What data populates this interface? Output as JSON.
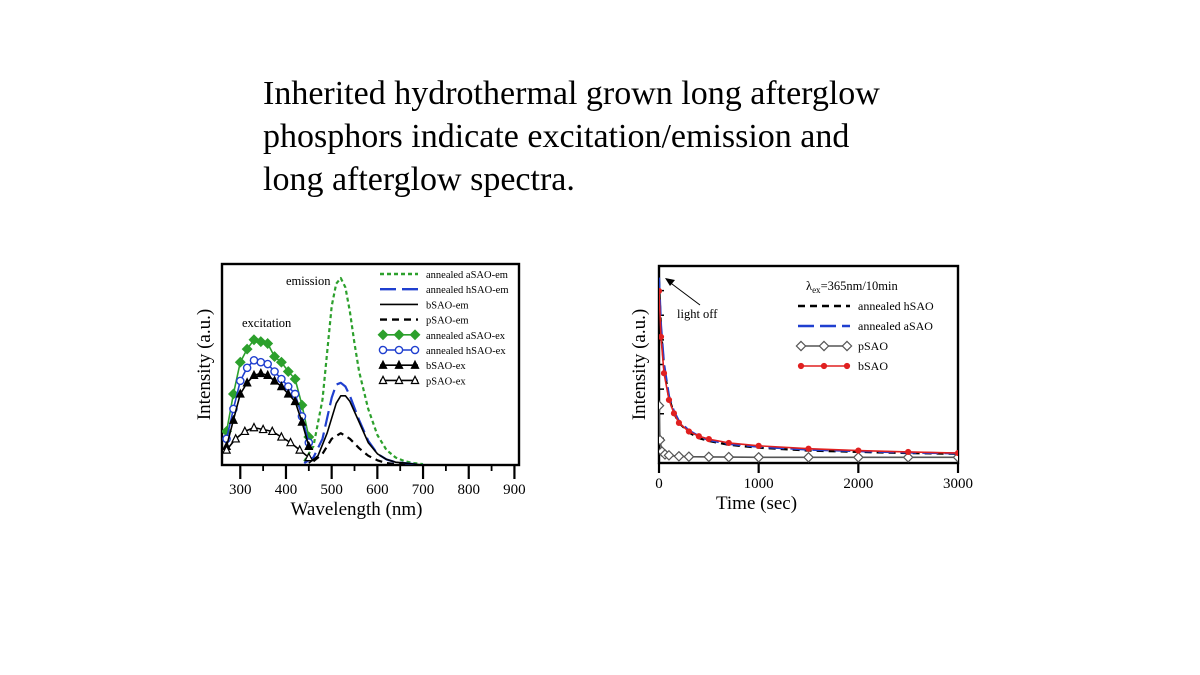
{
  "slide": {
    "title_lines": [
      "Inherited hydrothermal grown long afterglow",
      "phosphors indicate excitation/emission and",
      "long afterglow spectra."
    ]
  },
  "chart_data": [
    {
      "id": "spectra",
      "type": "line",
      "title": "",
      "xlabel": "Wavelength (nm)",
      "ylabel": "Intensity (a.u.)",
      "xlim": [
        260,
        910
      ],
      "ylim": [
        0,
        1.0
      ],
      "xticks": [
        300,
        400,
        500,
        600,
        700,
        800,
        900
      ],
      "annotations": [
        {
          "text": "emission",
          "x": 450,
          "y": 0.93
        },
        {
          "text": "excitation",
          "x": 265,
          "y": 0.72
        }
      ],
      "series": [
        {
          "name": "annealed aSAO-em",
          "color": "#2ca02c",
          "style": "dotted",
          "marker": "none",
          "x": [
            440,
            460,
            480,
            490,
            500,
            510,
            520,
            530,
            540,
            550,
            560,
            580,
            600,
            620,
            640,
            660,
            680,
            700
          ],
          "y": [
            0.02,
            0.1,
            0.35,
            0.6,
            0.85,
            0.97,
            1.0,
            0.95,
            0.82,
            0.65,
            0.5,
            0.3,
            0.16,
            0.08,
            0.04,
            0.02,
            0.01,
            0.005
          ]
        },
        {
          "name": "annealed hSAO-em",
          "color": "#1f3fcf",
          "style": "longdash",
          "marker": "none",
          "x": [
            440,
            460,
            480,
            500,
            510,
            520,
            530,
            540,
            560,
            580,
            600,
            620,
            640,
            660,
            680,
            700
          ],
          "y": [
            0.01,
            0.04,
            0.14,
            0.36,
            0.43,
            0.44,
            0.42,
            0.37,
            0.24,
            0.13,
            0.06,
            0.03,
            0.015,
            0.01,
            0.005,
            0.0
          ]
        },
        {
          "name": "bSAO-em",
          "color": "#000000",
          "style": "solid",
          "marker": "none",
          "x": [
            450,
            470,
            490,
            510,
            520,
            530,
            540,
            560,
            580,
            600,
            620,
            640,
            660,
            680,
            700
          ],
          "y": [
            0.01,
            0.05,
            0.17,
            0.33,
            0.37,
            0.37,
            0.34,
            0.23,
            0.12,
            0.06,
            0.03,
            0.015,
            0.01,
            0.005,
            0.0
          ]
        },
        {
          "name": "pSAO-em",
          "color": "#000000",
          "style": "dash",
          "marker": "none",
          "x": [
            460,
            480,
            500,
            520,
            540,
            560,
            580,
            600,
            620,
            640,
            660
          ],
          "y": [
            0.02,
            0.06,
            0.14,
            0.17,
            0.14,
            0.09,
            0.05,
            0.025,
            0.01,
            0.005,
            0.0
          ]
        },
        {
          "name": "annealed aSAO-ex",
          "color": "#2ca02c",
          "style": "solid",
          "marker": "diamond",
          "x": [
            270,
            285,
            300,
            315,
            330,
            345,
            360,
            375,
            390,
            405,
            420,
            435,
            450
          ],
          "y": [
            0.18,
            0.38,
            0.55,
            0.62,
            0.67,
            0.66,
            0.65,
            0.58,
            0.55,
            0.5,
            0.46,
            0.32,
            0.15
          ]
        },
        {
          "name": "annealed hSAO-ex",
          "color": "#1f3fcf",
          "style": "solid",
          "marker": "circle",
          "x": [
            270,
            285,
            300,
            315,
            330,
            345,
            360,
            375,
            390,
            405,
            420,
            435,
            450
          ],
          "y": [
            0.14,
            0.3,
            0.45,
            0.52,
            0.56,
            0.55,
            0.54,
            0.5,
            0.46,
            0.42,
            0.38,
            0.26,
            0.12
          ]
        },
        {
          "name": "bSAO-ex",
          "color": "#000000",
          "style": "solid",
          "marker": "triangle-filled",
          "x": [
            270,
            285,
            300,
            315,
            330,
            345,
            360,
            375,
            390,
            405,
            420,
            435,
            450
          ],
          "y": [
            0.1,
            0.24,
            0.38,
            0.44,
            0.48,
            0.49,
            0.48,
            0.45,
            0.42,
            0.38,
            0.34,
            0.23,
            0.1
          ]
        },
        {
          "name": "pSAO-ex",
          "color": "#000000",
          "style": "solid",
          "marker": "triangle-open",
          "x": [
            270,
            290,
            310,
            330,
            350,
            370,
            390,
            410,
            430,
            450
          ],
          "y": [
            0.08,
            0.14,
            0.18,
            0.2,
            0.19,
            0.18,
            0.15,
            0.12,
            0.08,
            0.04
          ]
        }
      ]
    },
    {
      "id": "afterglow",
      "type": "line",
      "title": "",
      "xlabel": "Time (sec)",
      "ylabel": "Intensity (a.u.)",
      "xlim": [
        0,
        3000
      ],
      "ylim": [
        0,
        1.0
      ],
      "xticks": [
        0,
        1000,
        2000,
        3000
      ],
      "legend_header": "λex=365nm/10min",
      "annotations": [
        {
          "text": "light off"
        }
      ],
      "series": [
        {
          "name": "annealed hSAO",
          "color": "#000000",
          "style": "dash",
          "marker": "none",
          "x": [
            0,
            20,
            50,
            100,
            150,
            200,
            300,
            400,
            500,
            700,
            1000,
            1500,
            2000,
            2500,
            3000
          ],
          "y": [
            0.95,
            0.7,
            0.5,
            0.34,
            0.26,
            0.21,
            0.16,
            0.13,
            0.115,
            0.095,
            0.08,
            0.065,
            0.058,
            0.052,
            0.048
          ]
        },
        {
          "name": "annealed aSAO",
          "color": "#1f3fcf",
          "style": "longdash",
          "marker": "none",
          "x": [
            0,
            20,
            50,
            100,
            150,
            200,
            300,
            400,
            500,
            700,
            1000,
            1500,
            2000,
            2500,
            3000
          ],
          "y": [
            0.97,
            0.72,
            0.52,
            0.35,
            0.27,
            0.22,
            0.17,
            0.14,
            0.12,
            0.1,
            0.085,
            0.07,
            0.062,
            0.055,
            0.05
          ]
        },
        {
          "name": "pSAO",
          "color": "#555555",
          "style": "solid",
          "marker": "diamond-open",
          "x": [
            0,
            10,
            30,
            60,
            100,
            200,
            300,
            500,
            700,
            1000,
            1500,
            2000,
            2500,
            3000
          ],
          "y": [
            0.3,
            0.12,
            0.06,
            0.045,
            0.04,
            0.035,
            0.033,
            0.032,
            0.031,
            0.03,
            0.03,
            0.03,
            0.03,
            0.03
          ]
        },
        {
          "name": "bSAO",
          "color": "#e02020",
          "style": "solid",
          "marker": "dot",
          "x": [
            0,
            20,
            50,
            100,
            150,
            200,
            300,
            400,
            500,
            700,
            1000,
            1500,
            2000,
            2500,
            3000
          ],
          "y": [
            0.9,
            0.66,
            0.47,
            0.33,
            0.26,
            0.21,
            0.165,
            0.14,
            0.125,
            0.105,
            0.09,
            0.075,
            0.065,
            0.058,
            0.052
          ]
        }
      ]
    }
  ]
}
